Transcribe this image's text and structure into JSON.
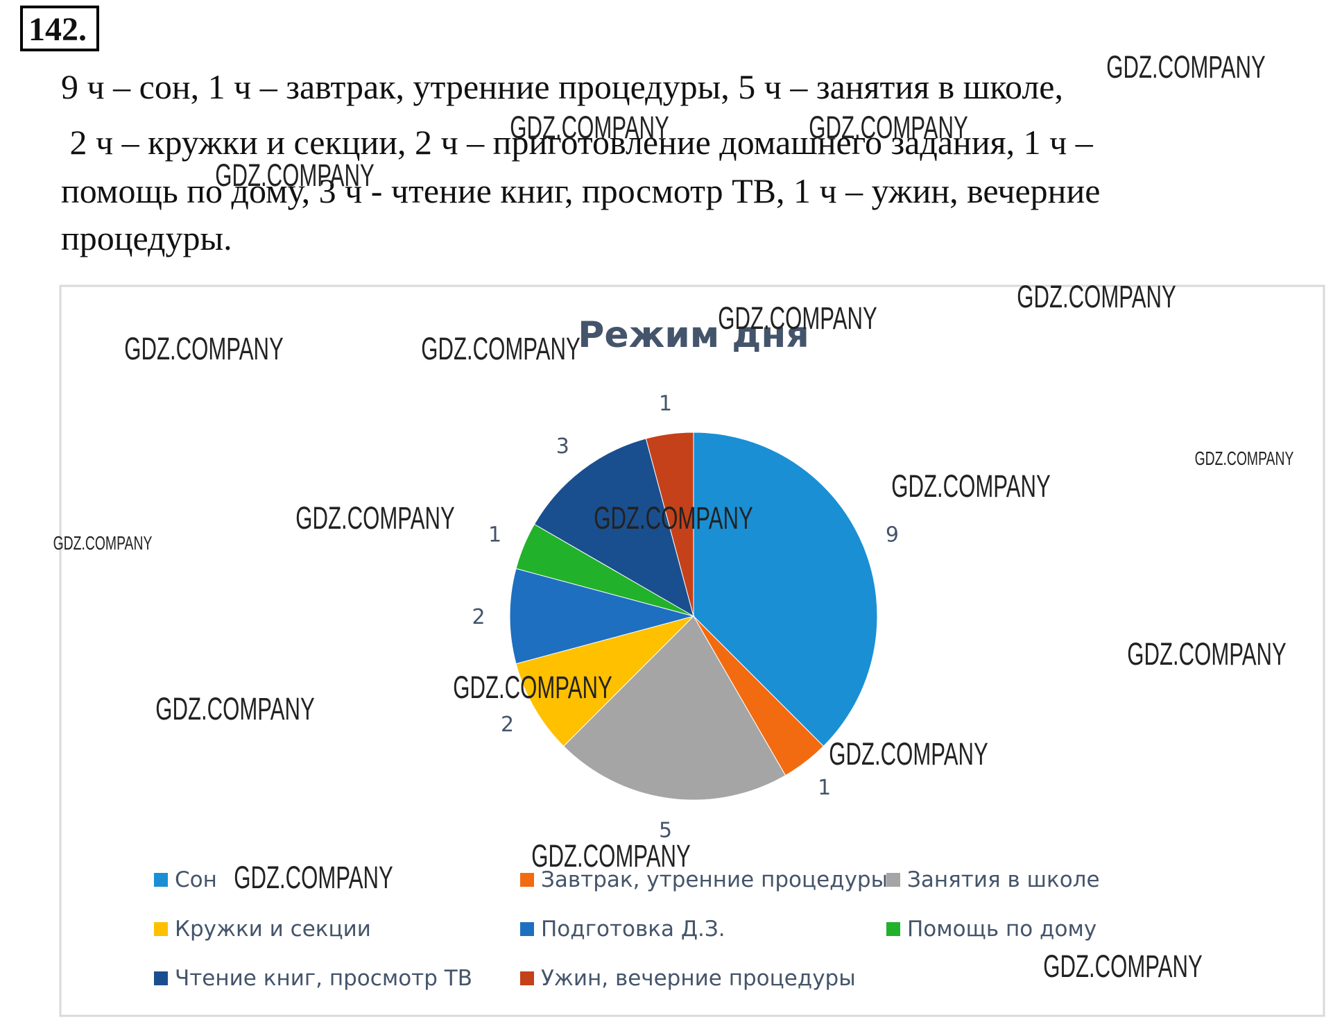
{
  "header": {
    "number": "142."
  },
  "text": {
    "lines": [
      "9 ч – сон, 1 ч – завтрак, утренние процедуры, 5 ч – занятия в школе,",
      " 2 ч – кружки и секции, 2 ч – приготовление домашнего задания, 1 ч –",
      "помощь по дому, 3 ч - чтение книг, просмотр ТВ, 1 ч – ужин, вечерние",
      "процедуры."
    ]
  },
  "chart_data": {
    "type": "pie",
    "title": "Режим дня",
    "categories": [
      "Сон",
      "Завтрак, утренние процедуры",
      "Занятия в школе",
      "Кружки и секции",
      "Подготовка Д.З.",
      "Помощь по дому",
      "Чтение книг, просмотр ТВ",
      "Ужин, вечерние процедуры"
    ],
    "values": [
      9,
      1,
      5,
      2,
      2,
      1,
      3,
      1
    ],
    "colors": [
      "#1a8fd4",
      "#f26b10",
      "#a5a5a5",
      "#ffc000",
      "#1f6fc0",
      "#22b12b",
      "#1a4f8f",
      "#c4411a"
    ]
  },
  "watermarks": [
    "GDZ.COMPANY",
    "GDZ.COMPANY",
    "GDZ.COMPANY",
    "GDZ.COMPANY",
    "GDZ.COMPANY",
    "GDZ.COMPANY",
    "GDZ.COMPANY",
    "GDZ.COMPANY",
    "GDZ.COMPANY",
    "GDZ.COMPANY",
    "GDZ.COMPANY",
    "GDZ.COMPANY",
    "GDZ.COMPANY",
    "GDZ.COMPANY",
    "GDZ.COMPANY",
    "GDZ.COMPANY",
    "GDZ.COMPANY",
    "GDZ.COMPANY",
    "GDZ.COMPANY",
    "GDZ.COMPANY"
  ]
}
